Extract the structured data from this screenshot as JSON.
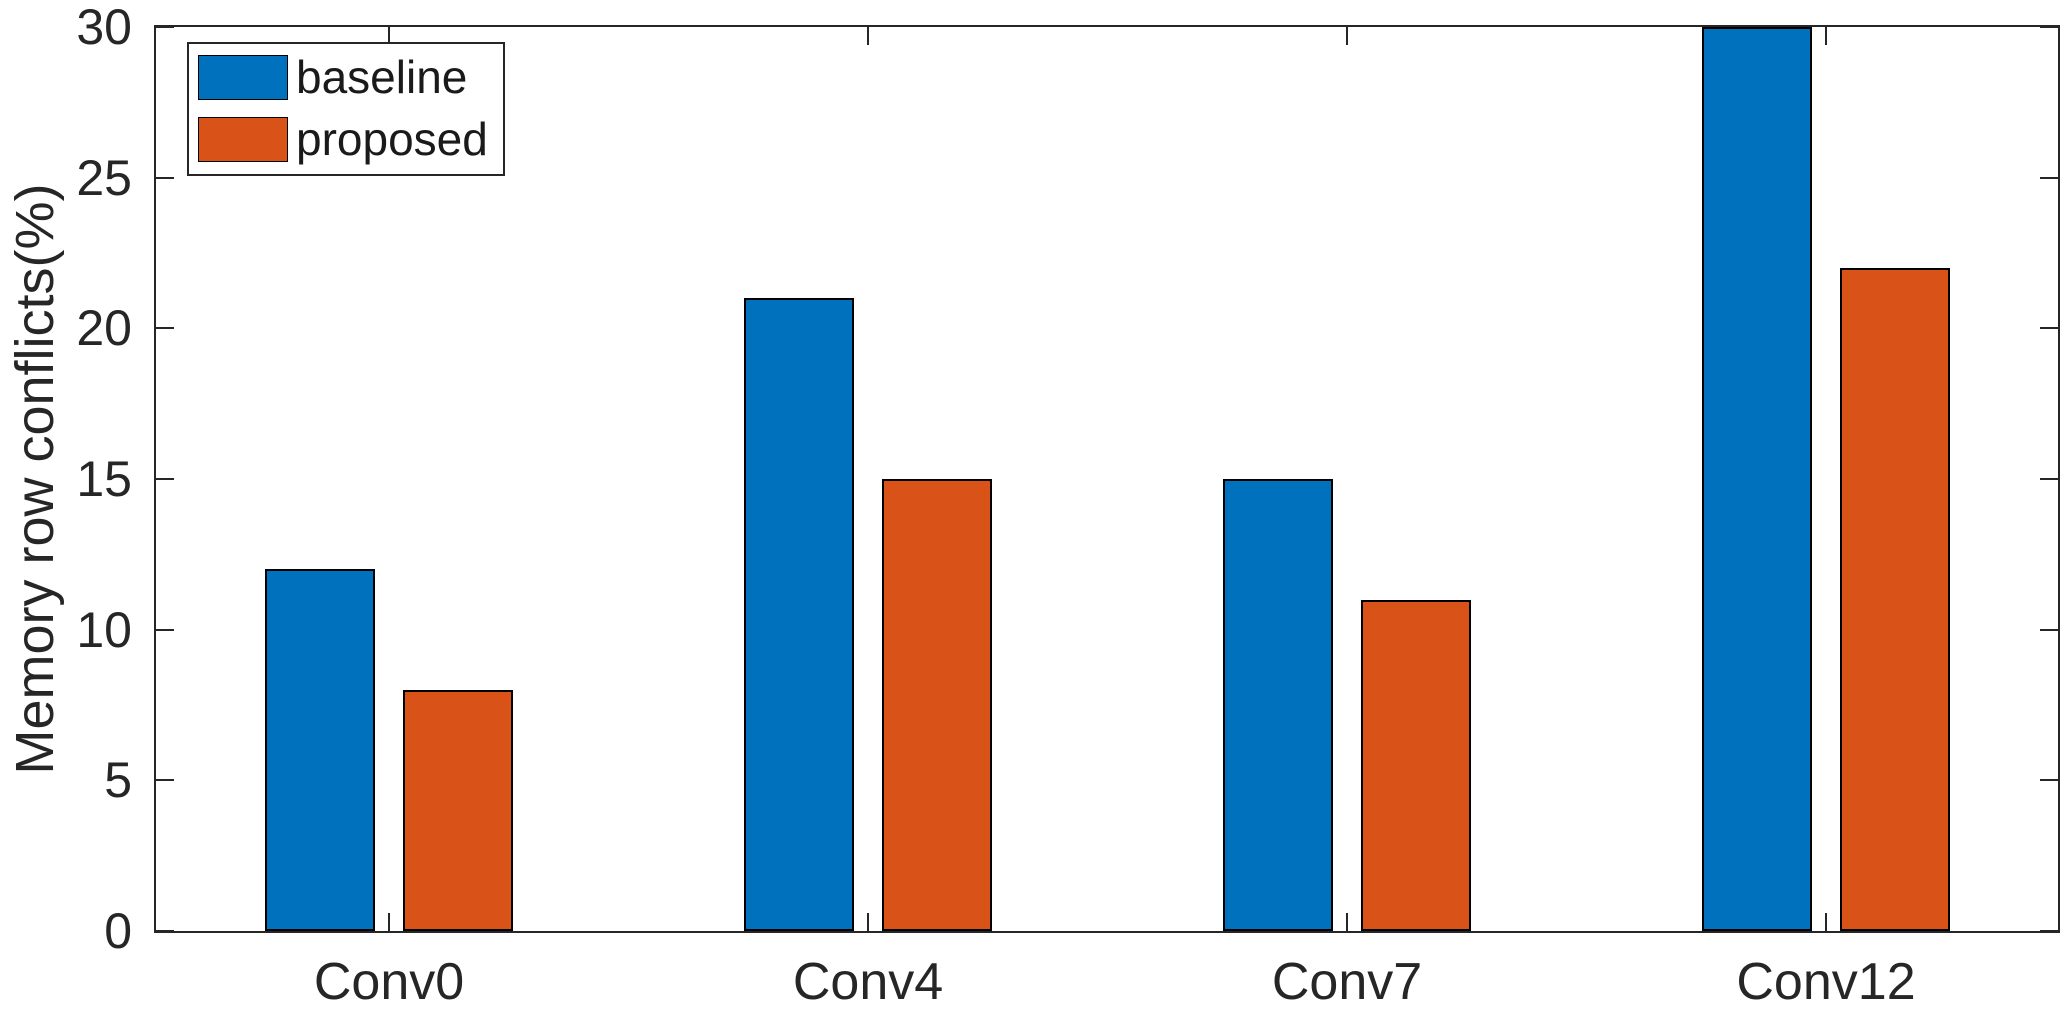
{
  "chart_data": {
    "type": "bar",
    "title": "",
    "xlabel": "",
    "ylabel": "Memory row conflicts(%)",
    "categories": [
      "Conv0",
      "Conv4",
      "Conv7",
      "Conv12"
    ],
    "series": [
      {
        "name": "baseline",
        "color": "#0072BD",
        "values": [
          12,
          21,
          15,
          30
        ]
      },
      {
        "name": "proposed",
        "color": "#D95319",
        "values": [
          8,
          15,
          11,
          22
        ]
      }
    ],
    "ylim": [
      0,
      30
    ],
    "yticks": [
      0,
      5,
      10,
      15,
      20,
      25,
      30
    ],
    "legend": {
      "position": "top-left",
      "entries": [
        "baseline",
        "proposed"
      ]
    },
    "grid": false,
    "background_color": "#FFFFFF",
    "bar_edge_color": "#000000",
    "axis_color": "#262626"
  }
}
